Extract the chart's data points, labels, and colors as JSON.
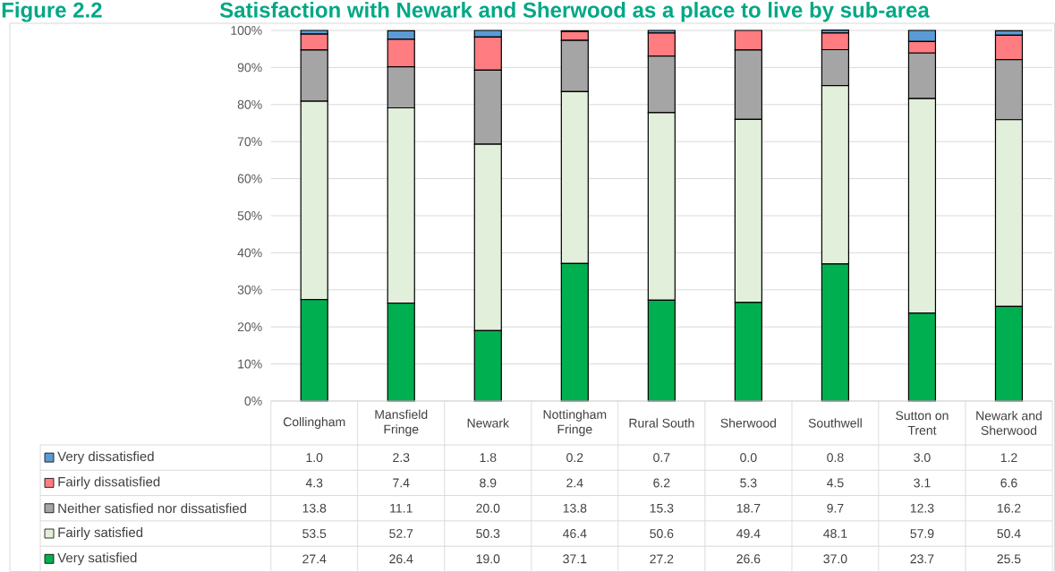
{
  "chart_data": {
    "type": "bar",
    "stacked": true,
    "title": "Satisfaction with Newark and Sherwood as a place to live by sub-area",
    "annotations": [
      "Figure 2.2"
    ],
    "categories": [
      "Collingham",
      "Mansfield Fringe",
      "Newark",
      "Nottingham Fringe",
      "Rural South",
      "Sherwood",
      "Southwell",
      "Sutton on Trent",
      "Newark and Sherwood"
    ],
    "series": [
      {
        "name": "Very satisfied",
        "color": "#00b050",
        "values": [
          27.4,
          26.4,
          19.0,
          37.1,
          27.2,
          26.6,
          37.0,
          23.7,
          25.5
        ],
        "value_labels": [
          "27.4",
          "26.4",
          "19.0",
          "37.1",
          "27.2",
          "26.6",
          "37.0",
          "23.7",
          "25.5"
        ]
      },
      {
        "name": "Fairly satisfied",
        "color": "#e2efda",
        "values": [
          53.5,
          52.7,
          50.3,
          46.4,
          50.6,
          49.4,
          48.1,
          57.9,
          50.4
        ],
        "value_labels": [
          "53.5",
          "52.7",
          "50.3",
          "46.4",
          "50.6",
          "49.4",
          "48.1",
          "57.9",
          "50.4"
        ]
      },
      {
        "name": "Neither satisfied nor dissatisfied",
        "color": "#a5a5a5",
        "values": [
          13.8,
          11.1,
          20.0,
          13.8,
          15.3,
          18.7,
          9.7,
          12.3,
          16.2
        ],
        "value_labels": [
          "13.8",
          "11.1",
          "20.0",
          "13.8",
          "15.3",
          "18.7",
          "9.7",
          "12.3",
          "16.2"
        ]
      },
      {
        "name": "Fairly dissatisfied",
        "color": "#ff7c80",
        "values": [
          4.3,
          7.4,
          8.9,
          2.4,
          6.2,
          5.3,
          4.5,
          3.1,
          6.6
        ],
        "value_labels": [
          "4.3",
          "7.4",
          "8.9",
          "2.4",
          "6.2",
          "5.3",
          "4.5",
          "3.1",
          "6.6"
        ]
      },
      {
        "name": "Very dissatisfied",
        "color": "#5b9bd5",
        "values": [
          1.0,
          2.3,
          1.8,
          0.2,
          0.7,
          0.0,
          0.8,
          3.0,
          1.2
        ],
        "value_labels": [
          "1.0",
          "2.3",
          "1.8",
          "0.2",
          "0.7",
          "0.0",
          "0.8",
          "3.0",
          "1.2"
        ]
      }
    ],
    "ylim": [
      0,
      100
    ],
    "yticks": [
      {
        "value": 0,
        "label": "0%"
      },
      {
        "value": 10,
        "label": "10%"
      },
      {
        "value": 20,
        "label": "20%"
      },
      {
        "value": 30,
        "label": "30%"
      },
      {
        "value": 40,
        "label": "40%"
      },
      {
        "value": 50,
        "label": "50%"
      },
      {
        "value": 60,
        "label": "60%"
      },
      {
        "value": 70,
        "label": "70%"
      },
      {
        "value": 80,
        "label": "80%"
      },
      {
        "value": 90,
        "label": "90%"
      },
      {
        "value": 100,
        "label": "100%"
      }
    ],
    "grid": "y",
    "legend": "bottom"
  }
}
